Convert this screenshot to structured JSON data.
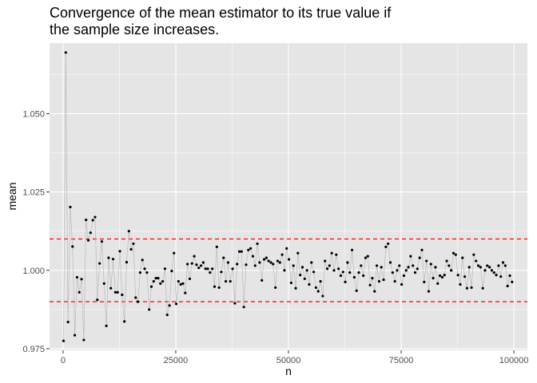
{
  "chart_data": {
    "type": "scatter",
    "title_lines": [
      "Convergence of the mean estimator to its true value if",
      "the sample size increases."
    ],
    "xlabel": "n",
    "ylabel": "mean",
    "xlim": [
      -3000,
      103000
    ],
    "ylim": [
      0.9745,
      1.0725
    ],
    "x_ticks": [
      0,
      25000,
      50000,
      75000,
      100000
    ],
    "x_tick_labels": [
      "0",
      "25000",
      "50000",
      "75000",
      "100000"
    ],
    "y_ticks": [
      0.975,
      1.0,
      1.025,
      1.05
    ],
    "y_tick_labels": [
      "0.975",
      "1.000",
      "1.025",
      "1.050"
    ],
    "grid": true,
    "panel_background": "#e5e5e5",
    "grid_color": "#ffffff",
    "point_color": "#000000",
    "line_color": "#b3b3b3",
    "reference_line_color": "#ff0000",
    "reference_lines": [
      {
        "y": 1.01,
        "style": "dashed"
      },
      {
        "y": 0.99,
        "style": "dashed"
      }
    ],
    "series": [
      {
        "x": [
          100,
          600,
          1100,
          1600,
          2100,
          2600,
          3100,
          3600,
          4100,
          4600,
          5100,
          5600,
          6100,
          6600,
          7100,
          7600,
          8100,
          8600,
          9100,
          9600,
          10100,
          10600,
          11100,
          11600,
          12100,
          12600,
          13100,
          13600,
          14100,
          14600,
          15100,
          15600,
          16100,
          16600,
          17100,
          17600,
          18100,
          18600,
          19100,
          19600,
          20100,
          20600,
          21100,
          21600,
          22100,
          22600,
          23100,
          23600,
          24100,
          24600,
          25100,
          25600,
          26100,
          26600,
          27100,
          27600,
          28100,
          28600,
          29100,
          29600,
          30100,
          30600,
          31100,
          31600,
          32100,
          32600,
          33100,
          33600,
          34100,
          34600,
          35100,
          35600,
          36100,
          36600,
          37100,
          37600,
          38100,
          38600,
          39100,
          39600,
          40100,
          40600,
          41100,
          41600,
          42100,
          42600,
          43100,
          43600,
          44100,
          44600,
          45100,
          45600,
          46100,
          46600,
          47100,
          47600,
          48100,
          48600,
          49100,
          49600,
          50100,
          50600,
          51100,
          51600,
          52100,
          52600,
          53100,
          53600,
          54100,
          54600,
          55100,
          55600,
          56100,
          56600,
          57100,
          57600,
          58100,
          58600,
          59100,
          59600,
          60100,
          60600,
          61100,
          61600,
          62100,
          62600,
          63100,
          63600,
          64100,
          64600,
          65100,
          65600,
          66100,
          66600,
          67100,
          67600,
          68100,
          68600,
          69100,
          69600,
          70100,
          70600,
          71100,
          71600,
          72100,
          72600,
          73100,
          73600,
          74100,
          74600,
          75100,
          75600,
          76100,
          76600,
          77100,
          77600,
          78100,
          78600,
          79100,
          79600,
          80100,
          80600,
          81100,
          81600,
          82100,
          82600,
          83100,
          83600,
          84100,
          84600,
          85100,
          85600,
          86100,
          86600,
          87100,
          87600,
          88100,
          88600,
          89100,
          89600,
          90100,
          90600,
          91100,
          91600,
          92100,
          92600,
          93100,
          93600,
          94100,
          94600,
          95100,
          95600,
          96100,
          96600,
          97100,
          97600,
          98100,
          98600,
          99100,
          99600
        ],
        "y": [
          0.9775,
          1.0695,
          0.9835,
          1.0202,
          1.0076,
          0.9793,
          0.9978,
          0.993,
          0.9972,
          0.9778,
          1.0161,
          1.0096,
          1.012,
          1.016,
          1.017,
          0.9906,
          1.0022,
          1.0092,
          0.9958,
          0.9823,
          1.004,
          0.9943,
          1.0036,
          0.993,
          0.993,
          1.0061,
          0.9922,
          0.9837,
          1.0026,
          1.0125,
          1.0067,
          1.0085,
          0.9913,
          0.99,
          0.9993,
          1.0033,
          1.0005,
          0.9993,
          0.9875,
          0.9948,
          0.9965,
          0.9975,
          0.9975,
          0.9958,
          0.9965,
          1.0005,
          0.9858,
          0.9888,
          0.9998,
          1.0055,
          0.9893,
          0.9965,
          0.9955,
          0.9958,
          0.9928,
          1.002,
          0.9973,
          1.0022,
          1.0045,
          1.0018,
          1.0008,
          1.0015,
          1.0025,
          1.0005,
          1.0005,
          0.9993,
          1.0005,
          0.9948,
          1.0075,
          0.9945,
          0.9995,
          1.004,
          0.9965,
          1.0025,
          0.9965,
          1.0005,
          0.9895,
          1.002,
          1.006,
          1.006,
          0.9883,
          1.0018,
          1.0065,
          1.007,
          1.0045,
          1.0015,
          1.0085,
          1.0025,
          0.9968,
          1.0035,
          1.004,
          1.003,
          1.0025,
          1.002,
          0.9945,
          1.003,
          1.0025,
          1.005,
          1.0,
          1.007,
          1.0035,
          0.996,
          1.0015,
          0.9943,
          1.0055,
          0.9985,
          1.001,
          0.9973,
          1.0,
          0.9955,
          1.0025,
          0.9995,
          0.9945,
          0.9933,
          0.9965,
          0.9918,
          1.003,
          1.0005,
          1.0015,
          1.0055,
          1.0,
          1.005,
          1.0005,
          0.9983,
          0.9995,
          0.9963,
          1.0025,
          0.9993,
          1.0065,
          0.9978,
          0.9935,
          0.9993,
          1.0015,
          0.9983,
          1.004,
          1.0045,
          0.9953,
          0.9975,
          0.9933,
          1.0015,
          0.9965,
          1.001,
          0.997,
          1.0075,
          1.0085,
          1.0025,
          0.9993,
          0.9965,
          1.0,
          1.0015,
          0.9955,
          0.9983,
          1.0,
          1.001,
          1.0045,
          1.0015,
          0.9993,
          1.0005,
          1.004,
          1.0065,
          0.9963,
          1.003,
          0.9933,
          1.002,
          0.9975,
          1.001,
          0.9958,
          0.9983,
          0.9978,
          0.9985,
          1.003,
          1.0015,
          1.0,
          1.0055,
          1.005,
          0.9985,
          0.9955,
          1.004,
          0.998,
          0.9943,
          1.001,
          0.9945,
          1.005,
          1.003,
          1.0015,
          1.001,
          0.9943,
          1.0,
          1.0015,
          1.001,
          1.0,
          0.9993,
          0.9985,
          1.0015,
          0.998,
          1.0025,
          1.0015,
          0.995,
          0.9983,
          0.9963
        ]
      }
    ]
  }
}
